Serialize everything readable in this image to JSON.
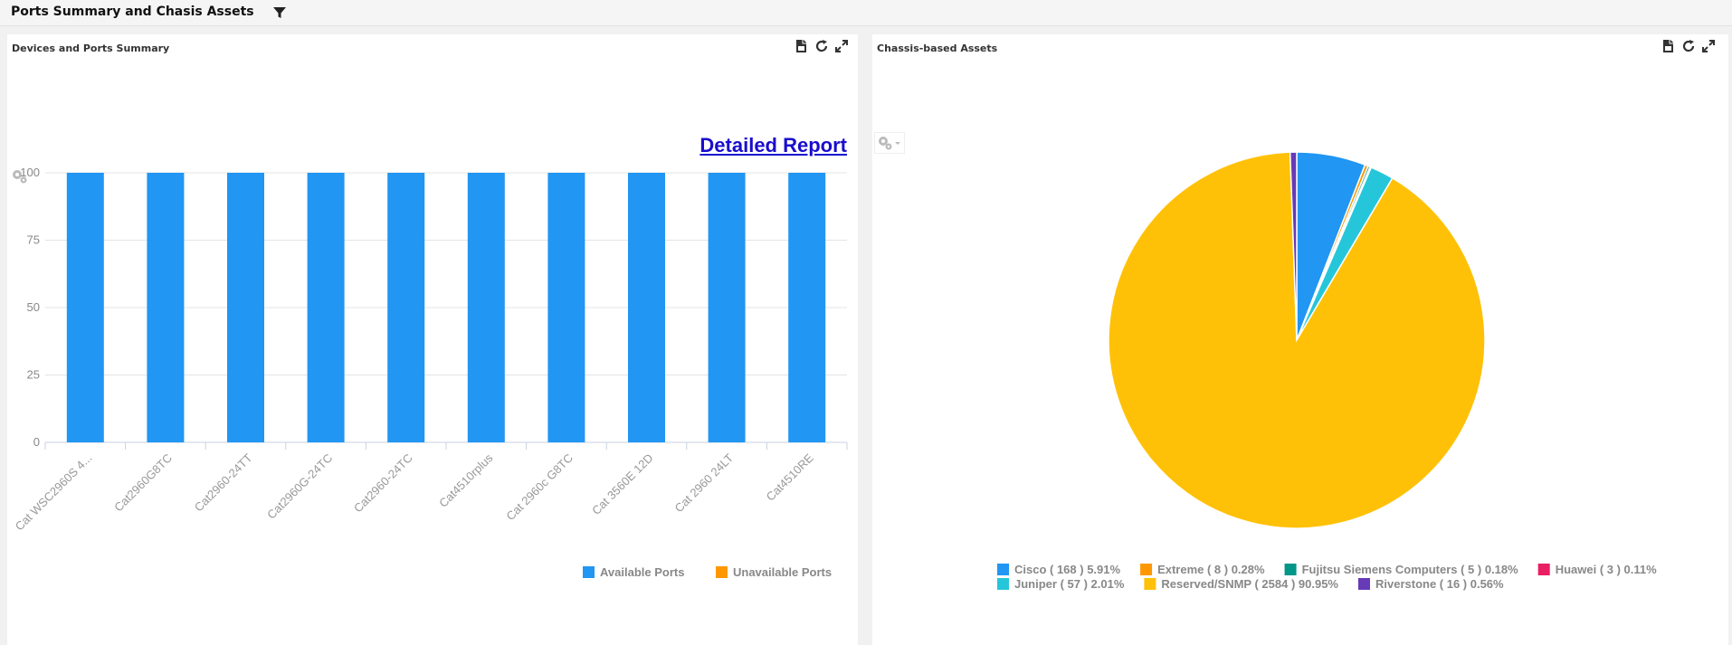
{
  "header": {
    "title": "Ports Summary and Chasis Assets"
  },
  "left_panel": {
    "title": "Devices and Ports Summary",
    "link_text": "Detailed Report",
    "legend": [
      {
        "label": "Available Ports",
        "color": "#2196f3"
      },
      {
        "label": "Unavailable Ports",
        "color": "#ff9800"
      }
    ]
  },
  "right_panel": {
    "title": "Chassis-based Assets"
  },
  "chart_data": [
    {
      "type": "bar",
      "categories": [
        "Cat WSC2960S 4...",
        "Cat2960G8TC",
        "Cat2960-24TT",
        "Cat2960G-24TC",
        "Cat2960-24TC",
        "Cat4510rplus",
        "Cat 2960c G8TC",
        "Cat 3560E 12D",
        "Cat 2960 24LT",
        "Cat4510RE"
      ],
      "series": [
        {
          "name": "Available Ports",
          "color": "#2196f3",
          "values": [
            100,
            100,
            100,
            100,
            100,
            100,
            100,
            100,
            100,
            100
          ]
        },
        {
          "name": "Unavailable Ports",
          "color": "#ff9800",
          "values": [
            0,
            0,
            0,
            0,
            0,
            0,
            0,
            0,
            0,
            0
          ]
        }
      ],
      "yticks": [
        "0",
        "25",
        "50",
        "75",
        "100"
      ],
      "ylim": [
        0,
        100
      ],
      "grid": true,
      "legend_position": "bottom-right"
    },
    {
      "type": "pie",
      "slices": [
        {
          "label": "Cisco",
          "count": "168",
          "percent": "5.91%",
          "value": 5.91,
          "color": "#2196f3"
        },
        {
          "label": "Extreme",
          "count": "8",
          "percent": "0.28%",
          "value": 0.28,
          "color": "#ff9800"
        },
        {
          "label": "Fujitsu Siemens Computers",
          "count": "5",
          "percent": "0.18%",
          "value": 0.18,
          "color": "#009688"
        },
        {
          "label": "Huawei",
          "count": "3",
          "percent": "0.11%",
          "value": 0.11,
          "color": "#e91e63"
        },
        {
          "label": "Juniper",
          "count": "57",
          "percent": "2.01%",
          "value": 2.01,
          "color": "#26c6da"
        },
        {
          "label": "Reserved/SNMP",
          "count": "2584",
          "percent": "90.95%",
          "value": 90.95,
          "color": "#ffc107"
        },
        {
          "label": "Riverstone",
          "count": "16",
          "percent": "0.56%",
          "value": 0.56,
          "color": "#673ab7"
        }
      ],
      "legend_position": "bottom"
    }
  ]
}
